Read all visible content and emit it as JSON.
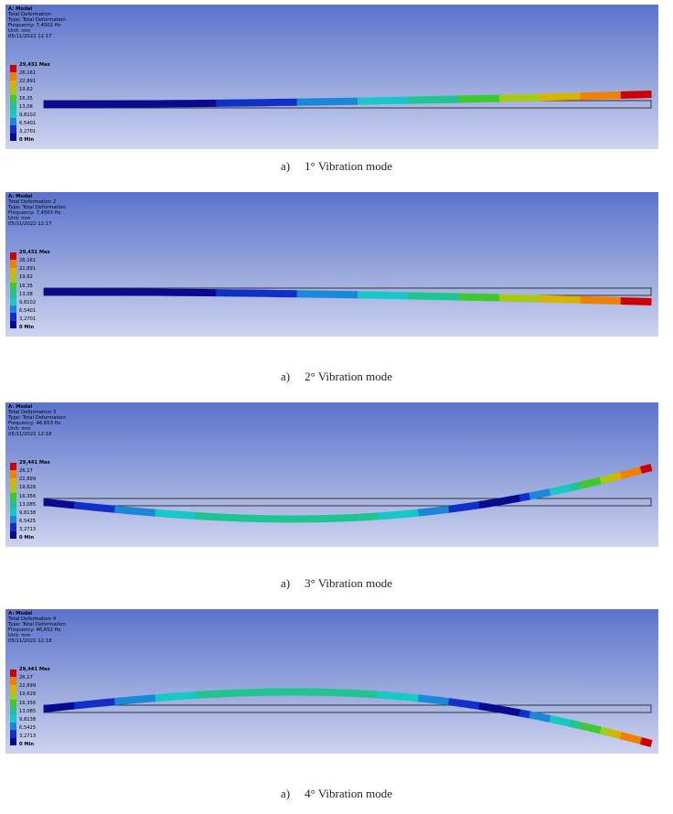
{
  "colors": {
    "contour_bands": [
      "#cc0000",
      "#f08000",
      "#d8b400",
      "#a8c818",
      "#40c830",
      "#20c490",
      "#18c8c8",
      "#1a88d8",
      "#1030c8",
      "#0a0a90"
    ],
    "beam_outline": "#333333"
  },
  "panels": [
    {
      "header": [
        "A: Modal",
        "Total Deformation",
        "Type: Total Deformation",
        "Frequency: 7,4502 Hz",
        "Unit: mm",
        "05/11/2022 12:17"
      ],
      "legend": [
        "29,431 Max",
        "26,161",
        "22,891",
        "19,62",
        "16,35",
        "13,08",
        "9,8102",
        "6,5401",
        "3,2701",
        "0 Min"
      ],
      "caption_letter": "a)",
      "caption_text": "1° Vibration mode"
    },
    {
      "header": [
        "A: Modal",
        "Total Deformation 2",
        "Type: Total Deformation",
        "Frequency: 7,4503 Hz",
        "Unit: mm",
        "05/11/2022 12:17"
      ],
      "legend": [
        "29,431 Max",
        "26,161",
        "22,891",
        "19,62",
        "16,35",
        "13,08",
        "9,8102",
        "6,5401",
        "3,2701",
        "0 Min"
      ],
      "caption_letter": "a)",
      "caption_text": "2° Vibration mode"
    },
    {
      "header": [
        "A: Modal",
        "Total Deformation 3",
        "Type: Total Deformation",
        "Frequency: 46,653 Hz",
        "Unit: mm",
        "05/11/2022 12:18"
      ],
      "legend": [
        "29,441 Max",
        "26,17",
        "22,899",
        "19,628",
        "16,356",
        "13,085",
        "9,8138",
        "6,5425",
        "3,2713",
        "0 Min"
      ],
      "caption_letter": "a)",
      "caption_text": "3° Vibration mode"
    },
    {
      "header": [
        "A: Modal",
        "Total Deformation 4",
        "Type: Total Deformation",
        "Frequency: 46,652 Hz",
        "Unit: mm",
        "05/11/2022 12:18"
      ],
      "legend": [
        "29,441 Max",
        "26,17",
        "22,899",
        "19,628",
        "16,356",
        "13,085",
        "9,8138",
        "6,5425",
        "3,2713",
        "0 Min"
      ],
      "caption_letter": "a)",
      "caption_text": "4° Vibration mode"
    }
  ]
}
